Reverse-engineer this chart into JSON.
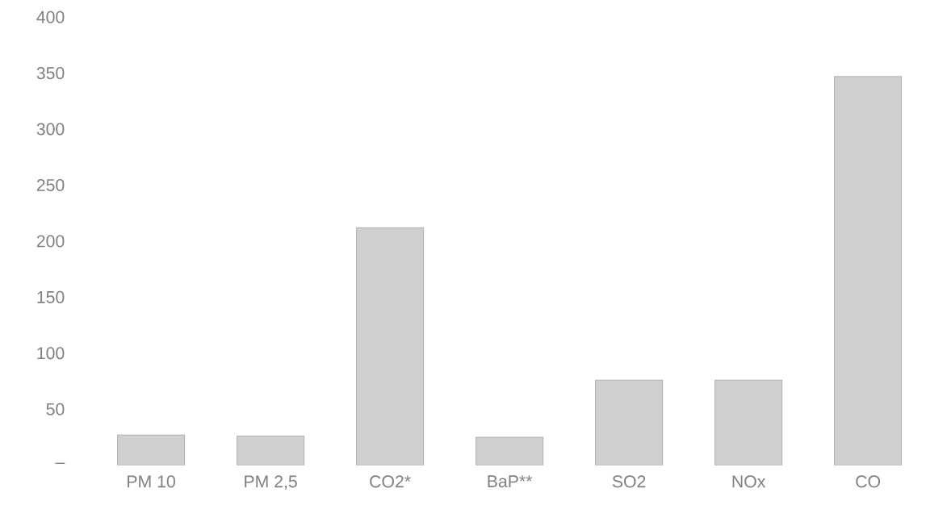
{
  "chart_data": {
    "type": "bar",
    "categories": [
      "PM 10",
      "PM 2,5",
      "CO2*",
      "BaP**",
      "SO2",
      "NOx",
      "CO"
    ],
    "values": [
      27,
      26,
      212,
      25,
      76,
      76,
      347
    ],
    "color": "#cfcfcf",
    "ylim": [
      0,
      400
    ],
    "yticks": [
      {
        "value": 0,
        "label": "–"
      },
      50,
      100,
      150,
      200,
      250,
      300,
      350,
      400
    ]
  }
}
